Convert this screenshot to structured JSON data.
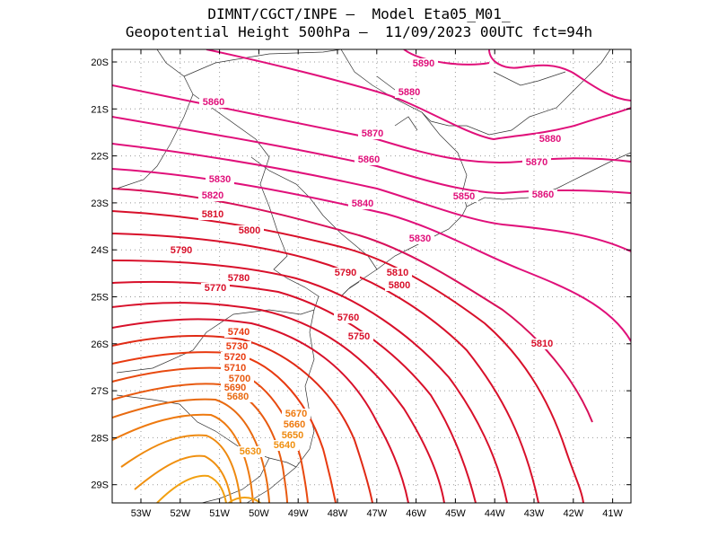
{
  "title": {
    "line1": "DIMNT/CGCT/INPE –  Model Eta05_M01_",
    "line2": "Geopotential Height 500hPa –  11/09/2023 00UTC fct=94h"
  },
  "axes": {
    "lon_ticks": [
      "53W",
      "52W",
      "51W",
      "50W",
      "49W",
      "48W",
      "47W",
      "46W",
      "45W",
      "44W",
      "43W",
      "42W",
      "41W"
    ],
    "lat_ticks": [
      "20S",
      "21S",
      "22S",
      "23S",
      "24S",
      "25S",
      "26S",
      "27S",
      "28S",
      "29S"
    ]
  },
  "contour_labels": [
    {
      "text": "5890",
      "color": "#e0107a"
    },
    {
      "text": "5880",
      "color": "#e0107a"
    },
    {
      "text": "5880",
      "color": "#e0107a"
    },
    {
      "text": "5870",
      "color": "#e0107a"
    },
    {
      "text": "5870",
      "color": "#e0107a"
    },
    {
      "text": "5860",
      "color": "#e0107a"
    },
    {
      "text": "5860",
      "color": "#e0107a"
    },
    {
      "text": "5860",
      "color": "#e0107a"
    },
    {
      "text": "5850",
      "color": "#e0107a"
    },
    {
      "text": "5840",
      "color": "#e0107a"
    },
    {
      "text": "5830",
      "color": "#e0107a"
    },
    {
      "text": "5830",
      "color": "#e0107a"
    },
    {
      "text": "5820",
      "color": "#e0107a"
    },
    {
      "text": "5810",
      "color": "#d8102a"
    },
    {
      "text": "5810",
      "color": "#d8102a"
    },
    {
      "text": "5810",
      "color": "#d8102a"
    },
    {
      "text": "5800",
      "color": "#d8102a"
    },
    {
      "text": "5800",
      "color": "#d8102a"
    },
    {
      "text": "5790",
      "color": "#d8102a"
    },
    {
      "text": "5790",
      "color": "#d8102a"
    },
    {
      "text": "5780",
      "color": "#d8102a"
    },
    {
      "text": "5770",
      "color": "#d8102a"
    },
    {
      "text": "5760",
      "color": "#d8102a"
    },
    {
      "text": "5750",
      "color": "#d8102a"
    },
    {
      "text": "5740",
      "color": "#e83a10"
    },
    {
      "text": "5730",
      "color": "#e83a10"
    },
    {
      "text": "5720",
      "color": "#e83a10"
    },
    {
      "text": "5710",
      "color": "#e84a10"
    },
    {
      "text": "5700",
      "color": "#e85a10"
    },
    {
      "text": "5690",
      "color": "#e85a10"
    },
    {
      "text": "5680",
      "color": "#e86a10"
    },
    {
      "text": "5670",
      "color": "#ee7a10"
    },
    {
      "text": "5660",
      "color": "#ee7a10"
    },
    {
      "text": "5650",
      "color": "#ee8a10"
    },
    {
      "text": "5640",
      "color": "#f09010"
    },
    {
      "text": "5630",
      "color": "#f09010"
    }
  ]
}
